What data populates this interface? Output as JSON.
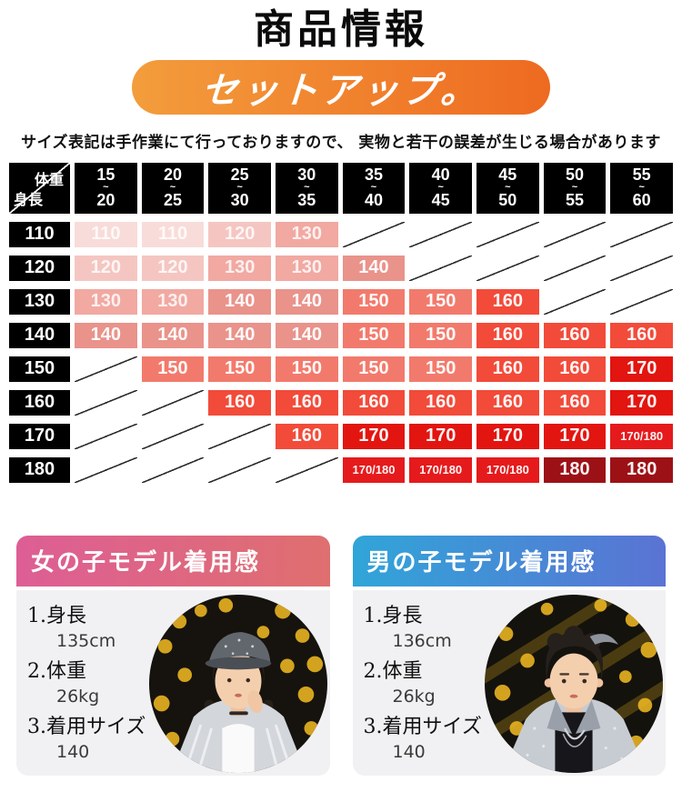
{
  "header": {
    "title": "商品情報",
    "banner_label": "セットアップ。",
    "banner_colors": [
      "#f39d3c",
      "#ee6a21"
    ],
    "note": "サイズ表記は手作業にて行っておりますので、 実物と若干の誤差が生じる場合があります"
  },
  "size_chart": {
    "corner": {
      "weight_label": "体重",
      "height_label": "身長"
    },
    "tilde": "~",
    "weight_ranges": [
      {
        "from": "15",
        "to": "20"
      },
      {
        "from": "20",
        "to": "25"
      },
      {
        "from": "25",
        "to": "30"
      },
      {
        "from": "30",
        "to": "35"
      },
      {
        "from": "35",
        "to": "40"
      },
      {
        "from": "40",
        "to": "45"
      },
      {
        "from": "45",
        "to": "50"
      },
      {
        "from": "50",
        "to": "55"
      },
      {
        "from": "55",
        "to": "60"
      }
    ],
    "rows": [
      {
        "height": "110",
        "sizes": [
          "110",
          "110",
          "120",
          "130",
          "",
          "",
          "",
          "",
          ""
        ]
      },
      {
        "height": "120",
        "sizes": [
          "120",
          "120",
          "130",
          "130",
          "140",
          "",
          "",
          "",
          ""
        ]
      },
      {
        "height": "130",
        "sizes": [
          "130",
          "130",
          "140",
          "140",
          "150",
          "150",
          "160",
          "",
          ""
        ]
      },
      {
        "height": "140",
        "sizes": [
          "140",
          "140",
          "140",
          "140",
          "150",
          "150",
          "160",
          "160",
          "160"
        ]
      },
      {
        "height": "150",
        "sizes": [
          "",
          "150",
          "150",
          "150",
          "150",
          "150",
          "160",
          "160",
          "170"
        ]
      },
      {
        "height": "160",
        "sizes": [
          "",
          "",
          "160",
          "160",
          "160",
          "160",
          "160",
          "160",
          "170"
        ]
      },
      {
        "height": "170",
        "sizes": [
          "",
          "",
          "",
          "160",
          "170",
          "170",
          "170",
          "170",
          "170/180"
        ]
      },
      {
        "height": "180",
        "sizes": [
          "",
          "",
          "",
          "",
          "170/180",
          "170/180",
          "170/180",
          "180",
          "180"
        ]
      }
    ],
    "size_colors": {
      "110": "#f8dcd9",
      "120": "#f5c6c1",
      "130": "#f1a9a2",
      "140": "#e9938b",
      "150": "#f27a6c",
      "160": "#f24b3a",
      "170": "#e21510",
      "170/180": "#e51a1c",
      "180": "#9c1116"
    }
  },
  "models": [
    {
      "title": "女の子モデル着用感",
      "photo": "girl-model-photo",
      "header_colors": [
        "#dd5e95",
        "#df6f6f"
      ],
      "items": [
        {
          "label": "1.身長",
          "value": "135cm"
        },
        {
          "label": "2.体重",
          "value": "26kg"
        },
        {
          "label": "3.着用サイズ",
          "value": "140"
        }
      ]
    },
    {
      "title": "男の子モデル着用感",
      "photo": "boy-model-photo",
      "header_colors": [
        "#30a5d8",
        "#5b73d4"
      ],
      "items": [
        {
          "label": "1.身長",
          "value": "136cm"
        },
        {
          "label": "2.体重",
          "value": "26kg"
        },
        {
          "label": "3.着用サイズ",
          "value": "140"
        }
      ]
    }
  ]
}
